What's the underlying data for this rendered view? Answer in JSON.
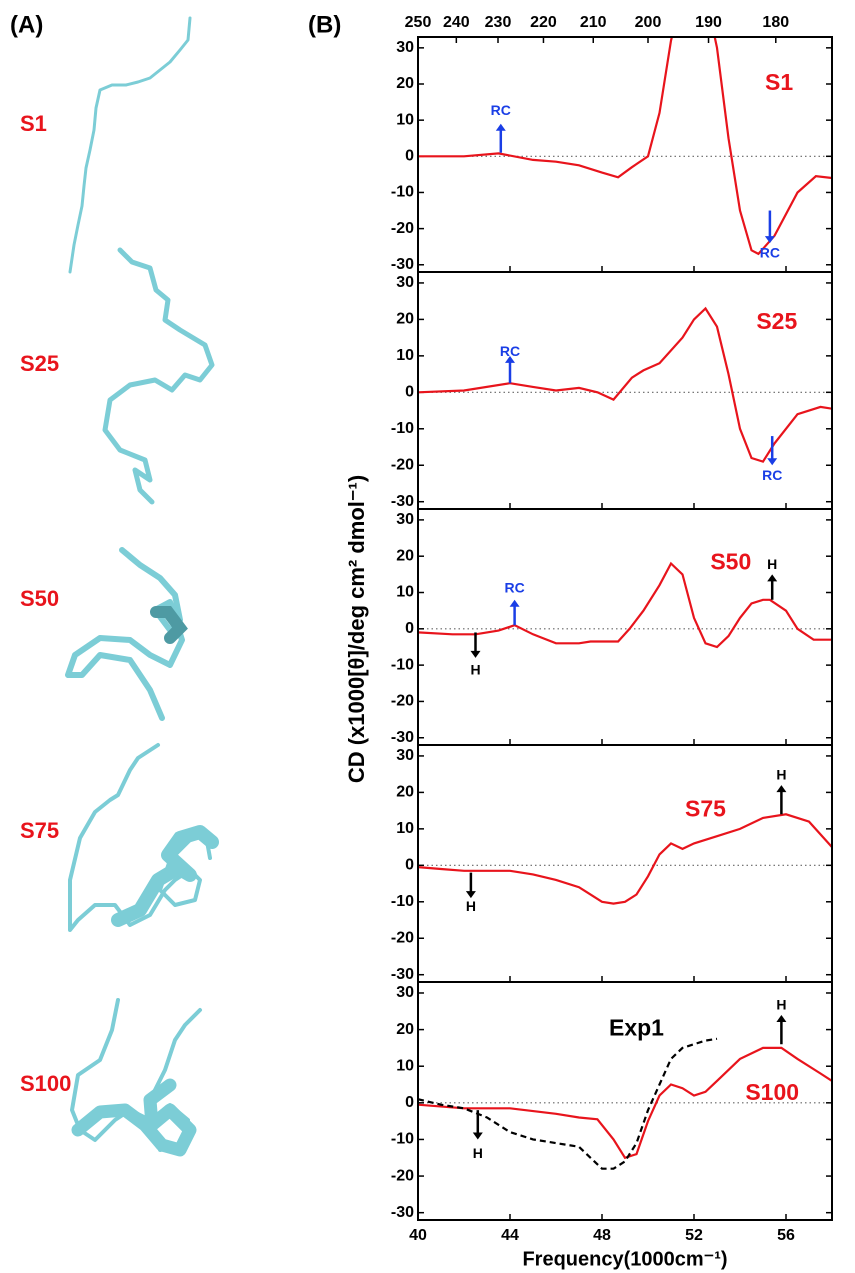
{
  "panel_labels": [
    "(A)",
    "(B)"
  ],
  "chart_data": [
    {
      "type": "line",
      "x2ticks": [
        250,
        240,
        230,
        220,
        210,
        200,
        190,
        180
      ],
      "series": [
        {
          "name": "S1",
          "color": "#e8141c",
          "x": [
            40,
            42,
            43.5,
            45,
            46,
            47,
            48,
            48.7,
            49.3,
            50,
            50.5,
            51,
            51.5,
            52.5,
            53,
            53.5,
            54,
            54.5,
            54.8,
            55.5,
            56.5,
            57.3,
            58
          ],
          "values": [
            0,
            0,
            0.8,
            -1,
            -1.5,
            -2.5,
            -4.5,
            -5.8,
            -3,
            0,
            12,
            32,
            45,
            45,
            30,
            5,
            -15,
            -26,
            -27,
            -22,
            -10,
            -5.5,
            -6
          ]
        }
      ],
      "xlim": [
        40,
        58
      ],
      "ylim": [
        -32,
        33
      ],
      "xticks": [
        40,
        44,
        48,
        52,
        56
      ],
      "yticks": [
        -30,
        -20,
        -10,
        0,
        10,
        20,
        30
      ],
      "annotations": [
        "RC",
        "RC"
      ]
    },
    {
      "type": "line",
      "series": [
        {
          "name": "S25",
          "color": "#e8141c",
          "x": [
            40,
            42,
            44,
            45,
            46,
            47,
            47.8,
            48.5,
            49.3,
            49.8,
            50.5,
            51.5,
            52,
            52.5,
            53,
            53.5,
            54,
            54.5,
            55,
            55.5,
            56.5,
            57.5,
            58
          ],
          "values": [
            0,
            0.5,
            2.5,
            1.5,
            0.5,
            1.2,
            0,
            -2,
            4,
            6,
            8,
            15,
            20,
            23,
            18,
            5,
            -10,
            -18,
            -19,
            -14,
            -6,
            -4,
            -4.5
          ]
        }
      ],
      "xlim": [
        40,
        58
      ],
      "ylim": [
        -32,
        33
      ],
      "xticks": [
        40,
        44,
        48,
        52,
        56
      ],
      "yticks": [
        -30,
        -20,
        -10,
        0,
        10,
        20,
        30
      ],
      "annotations": [
        "RC",
        "RC"
      ]
    },
    {
      "type": "line",
      "ylabel": "CD  (x1000[θ]/deg cm² dmol⁻¹)",
      "series": [
        {
          "name": "S50",
          "color": "#e8141c",
          "x": [
            40,
            41.5,
            42.5,
            43.5,
            44.2,
            45,
            46,
            47,
            47.5,
            48,
            48.7,
            49.2,
            49.8,
            50.5,
            51,
            51.5,
            52,
            52.5,
            53,
            53.5,
            54,
            54.5,
            55,
            55.3,
            56,
            56.5,
            57.2,
            58
          ],
          "values": [
            -1,
            -1.5,
            -1.5,
            -0.5,
            1,
            -1.5,
            -4,
            -4,
            -3.5,
            -3.5,
            -3.5,
            0,
            5,
            12,
            18,
            15,
            3,
            -4,
            -5,
            -2,
            3,
            7,
            8,
            8,
            5,
            0,
            -3,
            -3
          ]
        }
      ],
      "xlim": [
        40,
        58
      ],
      "ylim": [
        -32,
        33
      ],
      "xticks": [
        40,
        44,
        48,
        52,
        56
      ],
      "yticks": [
        -30,
        -20,
        -10,
        0,
        10,
        20,
        30
      ],
      "annotations": [
        "H",
        "RC",
        "H"
      ]
    },
    {
      "type": "line",
      "series": [
        {
          "name": "S75",
          "color": "#e8141c",
          "x": [
            40,
            41,
            42,
            43,
            44,
            45,
            46,
            47,
            48,
            48.5,
            49,
            49.5,
            50,
            50.5,
            51,
            51.5,
            52,
            53,
            54,
            55,
            56,
            57,
            58
          ],
          "values": [
            -0.5,
            -1,
            -1.5,
            -1.5,
            -1.5,
            -2.5,
            -4,
            -6,
            -10,
            -10.5,
            -10,
            -8,
            -3,
            3,
            6,
            4.5,
            6,
            8,
            10,
            13,
            14,
            12,
            5
          ]
        }
      ],
      "xlim": [
        40,
        58
      ],
      "ylim": [
        -32,
        33
      ],
      "xticks": [
        40,
        44,
        48,
        52,
        56
      ],
      "yticks": [
        -30,
        -20,
        -10,
        0,
        10,
        20,
        30
      ],
      "annotations": [
        "H",
        "H"
      ]
    },
    {
      "type": "line",
      "xlabel": "Frequency(1000cm⁻¹)",
      "series": [
        {
          "name": "S100",
          "color": "#e8141c",
          "x": [
            40,
            42,
            44,
            46,
            47,
            47.8,
            48.5,
            49,
            49.5,
            50,
            50.5,
            51,
            51.5,
            52,
            52.5,
            53,
            54,
            55,
            55.8,
            56.5,
            57.5,
            58
          ],
          "values": [
            -0.5,
            -1.5,
            -1.5,
            -3,
            -4,
            -4.5,
            -10,
            -15,
            -14,
            -5,
            2,
            5,
            4,
            2,
            3,
            6,
            12,
            15,
            15,
            12,
            8,
            6
          ]
        },
        {
          "name": "Exp1",
          "color": "#000000",
          "dash": true,
          "x": [
            40,
            41,
            42,
            43,
            44,
            45,
            46,
            47,
            47.5,
            48,
            48.5,
            49,
            49.5,
            50,
            50.5,
            51,
            51.5,
            52,
            52.5,
            53
          ],
          "values": [
            1,
            -0.5,
            -1.5,
            -4,
            -8,
            -10,
            -11,
            -12,
            -15,
            -18,
            -18,
            -16,
            -11,
            -2,
            5,
            12,
            15,
            16,
            17,
            17.5
          ]
        }
      ],
      "xlim": [
        40,
        58
      ],
      "ylim": [
        -32,
        33
      ],
      "xticks": [
        40,
        44,
        48,
        52,
        56
      ],
      "yticks": [
        -30,
        -20,
        -10,
        0,
        10,
        20,
        30
      ],
      "annotations": [
        "H",
        "H"
      ]
    }
  ]
}
